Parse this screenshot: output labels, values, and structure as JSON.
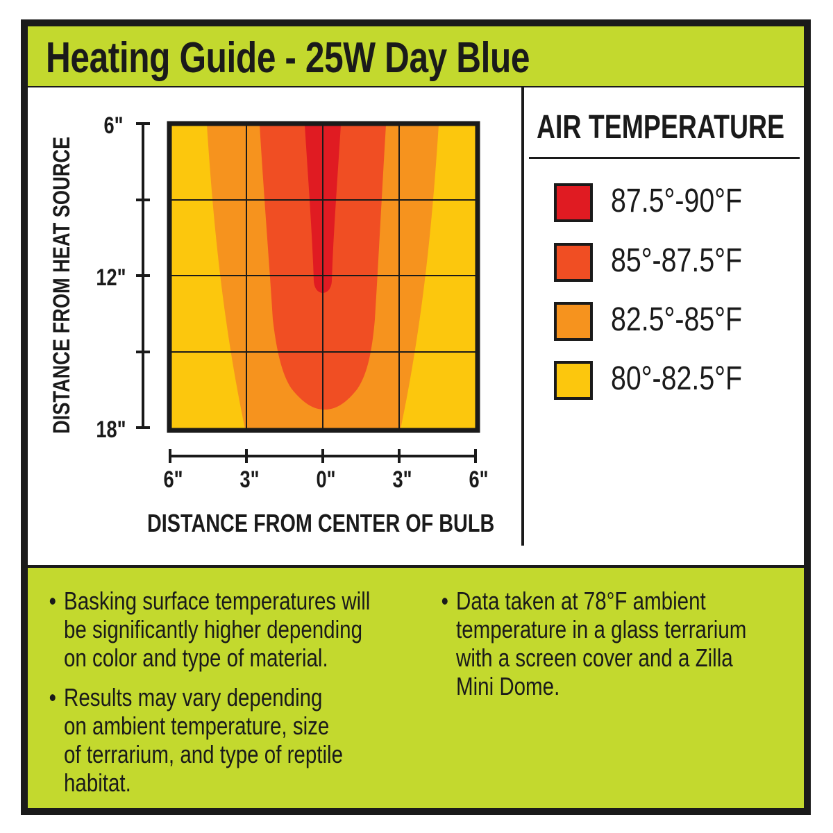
{
  "title": "Heating Guide - 25W Day Blue",
  "colors": {
    "green": "#c3d92e",
    "c1": "#e01b22",
    "c2": "#f04e23",
    "c3": "#f6931e",
    "c4": "#fcc70d"
  },
  "chart_data": {
    "type": "heatmap",
    "xlabel": "DISTANCE FROM CENTER OF BULB",
    "ylabel": "DISTANCE FROM HEAT SOURCE",
    "x_ticks": [
      "6\"",
      "3\"",
      "0\"",
      "3\"",
      "6\""
    ],
    "y_ticks": [
      "6\"",
      "12\"",
      "18\""
    ],
    "xlim_inches": [
      -6,
      6
    ],
    "ylim_inches": [
      6,
      18
    ],
    "grid": true,
    "legend_title": "AIR TEMPERATURE",
    "legend_placement": "right",
    "legend": [
      {
        "label": "87.5°-90°F",
        "color": "#e01b22"
      },
      {
        "label": "85°-87.5°F",
        "color": "#f04e23"
      },
      {
        "label": "82.5°-85°F",
        "color": "#f6931e"
      },
      {
        "label": "80°-82.5°F",
        "color": "#fcc70d"
      }
    ]
  },
  "notes": {
    "left": [
      [
        "Basking surface temperatures will",
        "be significantly higher depending",
        "on color and type of material."
      ],
      [
        "Results may vary depending",
        "on ambient temperature, size",
        "of terrarium, and type of reptile",
        "habitat."
      ]
    ],
    "right": [
      [
        "Data taken at 78°F ambient",
        "temperature in a glass terrarium",
        "with a screen cover and a Zilla",
        "Mini Dome."
      ]
    ],
    "bullet": "•"
  }
}
